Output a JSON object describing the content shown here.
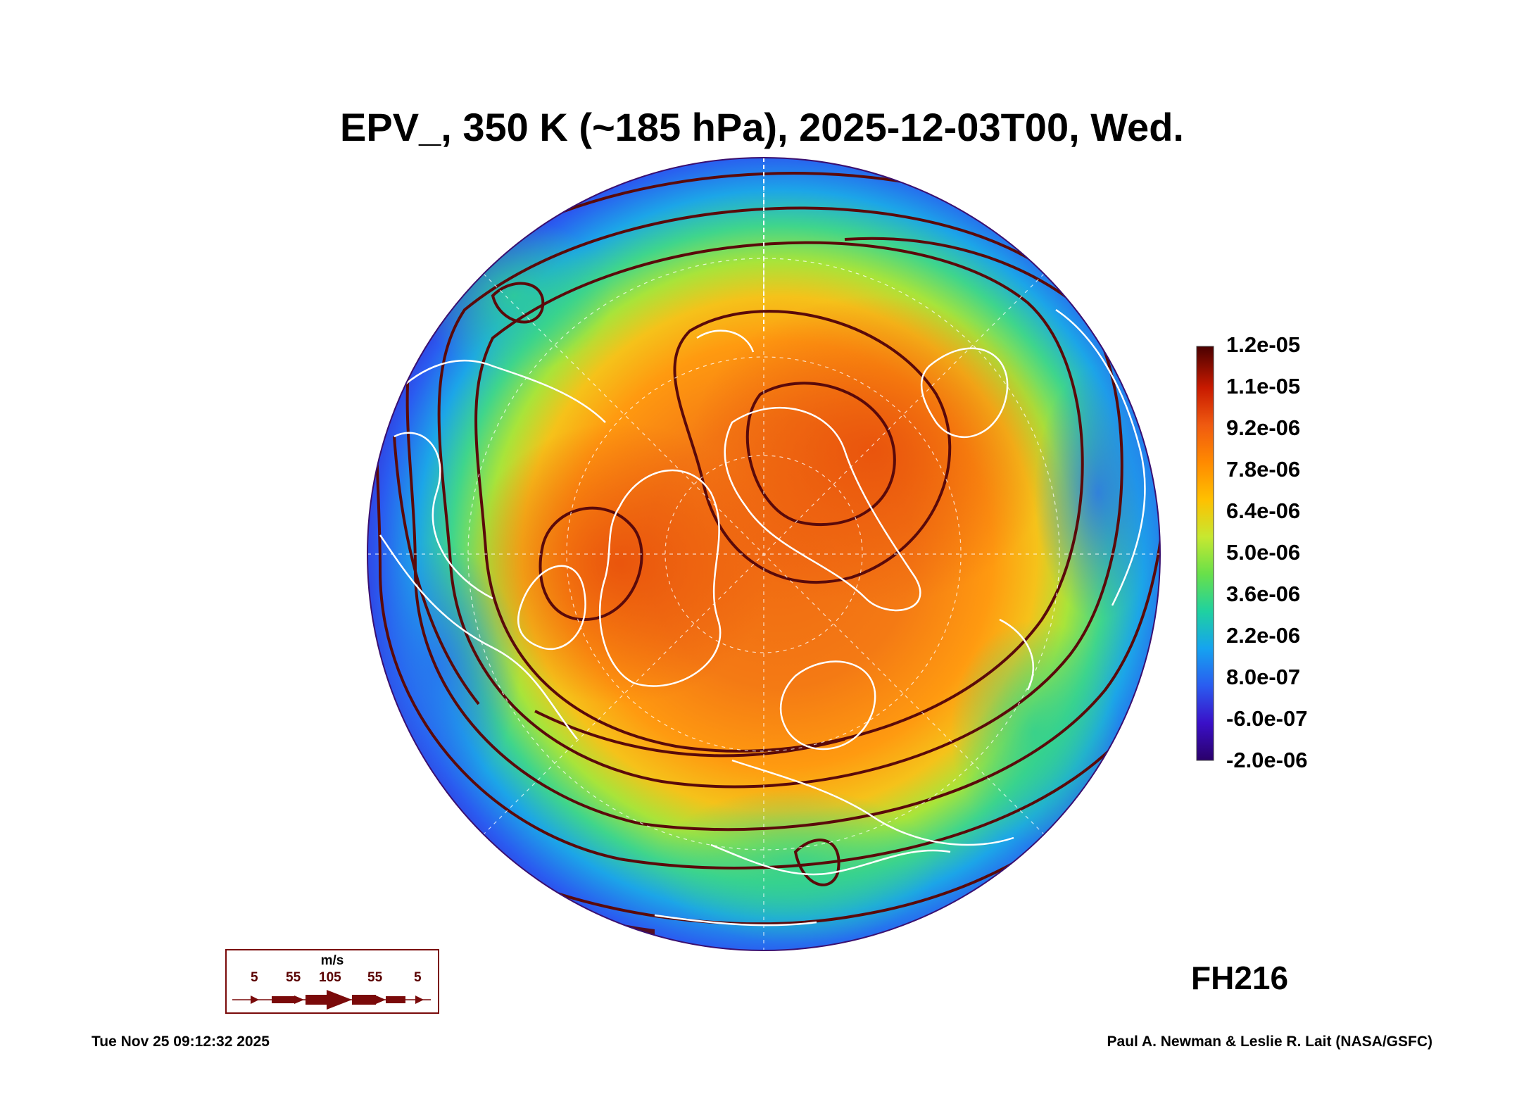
{
  "title": "EPV_, 350 K (~185 hPa), 2025-12-03T00, Wed.",
  "map": {
    "projection": "north-polar-stereographic",
    "field": "EPV",
    "level": "350 K",
    "pressure_approx": "~185 hPa",
    "valid_time": "2025-12-03T00",
    "day": "Wed."
  },
  "colorbar": {
    "labels": [
      "1.2e-05",
      "1.1e-05",
      "9.2e-06",
      "7.8e-06",
      "6.4e-06",
      "5.0e-06",
      "3.6e-06",
      "2.2e-06",
      "8.0e-07",
      "-6.0e-07",
      "-2.0e-06"
    ],
    "colors": [
      "#3b0066",
      "#3a10c8",
      "#2a5cf0",
      "#15a3f0",
      "#1fd1a0",
      "#68e04a",
      "#c7e830",
      "#ffc000",
      "#ff8a00",
      "#f05a10",
      "#c81a00",
      "#7a0000",
      "#4a0000"
    ]
  },
  "wind_legend": {
    "unit": "m/s",
    "values": [
      "5",
      "55",
      "105",
      "55",
      "5"
    ]
  },
  "forecast_hour": "FH216",
  "timestamp": "Tue Nov 25 09:12:32 2025",
  "credit": "Paul A. Newman & Leslie R. Lait (NASA/GSFC)",
  "colors": {
    "streamline": "#5a0a0a",
    "coastline": "#ffffff"
  }
}
